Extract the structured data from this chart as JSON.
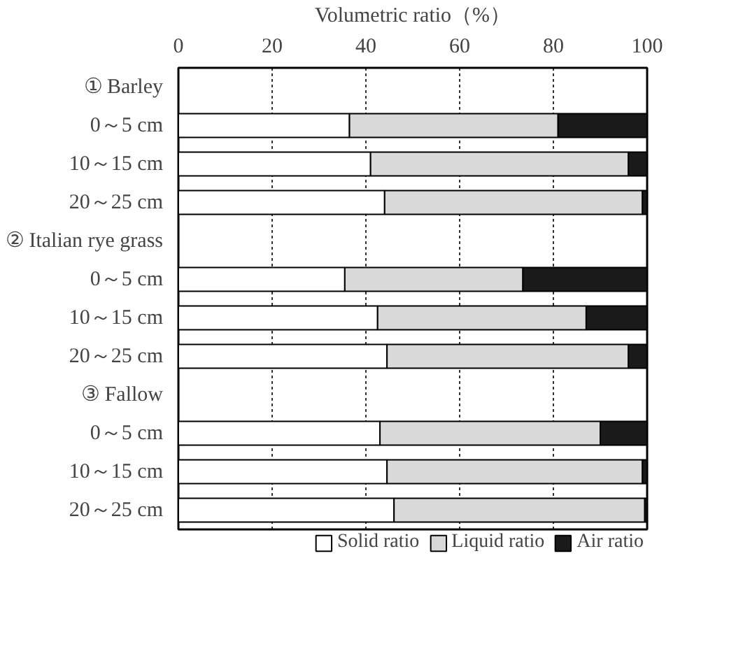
{
  "chart_data": {
    "type": "bar",
    "orientation": "horizontal",
    "stacked": true,
    "xlabel": "Volumetric ratio（%）",
    "categories": [
      "① Barley",
      "0～5 cm",
      "10～15 cm",
      "20～25 cm",
      "② Italian rye grass",
      "0～5 cm",
      "10～15 cm",
      "20～25 cm",
      "③ Fallow",
      "0～5 cm",
      "10～15 cm",
      "20～25 cm"
    ],
    "series": [
      {
        "name": "Solid ratio",
        "color": "#ffffff",
        "values": [
          null,
          36.5,
          41,
          44,
          null,
          35.5,
          42.5,
          44.5,
          null,
          43,
          44.5,
          46
        ]
      },
      {
        "name": "Liquid ratio",
        "color": "#d9d9d9",
        "values": [
          null,
          44.5,
          55,
          55,
          null,
          38,
          44.5,
          51.5,
          null,
          47,
          54.5,
          53.5
        ]
      },
      {
        "name": "Air ratio",
        "color": "#1a1a1a",
        "values": [
          null,
          19,
          4,
          1,
          null,
          26.5,
          13,
          4,
          null,
          10,
          1,
          0.5
        ]
      }
    ],
    "xlim": [
      0,
      100
    ],
    "xticks": [
      0,
      20,
      40,
      60,
      80,
      100
    ],
    "grid": "x",
    "legend": "bottom"
  }
}
